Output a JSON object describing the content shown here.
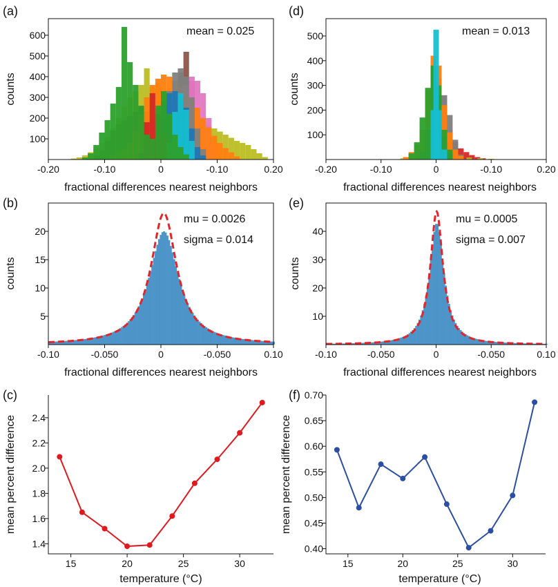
{
  "chart_data": [
    {
      "panel": "(a)",
      "type": "histogram",
      "annotation": "mean = 0.025",
      "xlabel": "fractional differences nearest neighbors",
      "ylabel": "counts",
      "x_ticks": [
        "-0.20",
        "-0.10",
        "0",
        "-0.10",
        "0.20"
      ],
      "y_ticks": [
        "100",
        "200",
        "300",
        "400",
        "500",
        "600"
      ],
      "xlim": [
        -0.2,
        0.2
      ],
      "ylim": [
        0,
        680
      ],
      "colors": [
        "#2ca02c",
        "#8c564b",
        "#bcbd22",
        "#ff7f0e",
        "#1f77b4",
        "#d62728",
        "#e377c2",
        "#7f7f7f",
        "#17becf"
      ],
      "series": [
        {
          "color": "#bcbd22",
          "values": [
            [
              -0.155,
              5
            ],
            [
              -0.145,
              10
            ],
            [
              -0.135,
              20
            ],
            [
              -0.125,
              35
            ],
            [
              -0.115,
              55
            ],
            [
              -0.105,
              80
            ],
            [
              -0.095,
              110
            ],
            [
              -0.085,
              150
            ],
            [
              -0.075,
              200
            ],
            [
              -0.065,
              255
            ],
            [
              -0.055,
              300
            ],
            [
              -0.045,
              330
            ],
            [
              -0.035,
              360
            ],
            [
              -0.025,
              440
            ],
            [
              -0.015,
              350
            ],
            [
              -0.005,
              370
            ],
            [
              0.005,
              330
            ],
            [
              0.015,
              290
            ],
            [
              0.025,
              260
            ],
            [
              0.035,
              270
            ],
            [
              0.045,
              240
            ],
            [
              0.055,
              215
            ],
            [
              0.065,
              195
            ],
            [
              0.075,
              180
            ],
            [
              0.085,
              165
            ],
            [
              0.095,
              150
            ],
            [
              0.105,
              135
            ],
            [
              0.115,
              120
            ],
            [
              0.125,
              105
            ],
            [
              0.135,
              90
            ],
            [
              0.145,
              80
            ],
            [
              0.155,
              70
            ],
            [
              0.165,
              50
            ],
            [
              0.175,
              30
            ],
            [
              0.185,
              12
            ]
          ]
        },
        {
          "color": "#8c564b",
          "values": [
            [
              -0.115,
              20
            ],
            [
              -0.105,
              45
            ],
            [
              -0.095,
              90
            ],
            [
              -0.085,
              140
            ],
            [
              -0.075,
              170
            ],
            [
              -0.065,
              190
            ],
            [
              -0.055,
              210
            ],
            [
              -0.045,
              230
            ],
            [
              -0.035,
              255
            ],
            [
              -0.025,
              230
            ],
            [
              -0.015,
              200
            ],
            [
              -0.005,
              210
            ],
            [
              0.005,
              220
            ],
            [
              0.015,
              210
            ],
            [
              0.025,
              300
            ],
            [
              0.035,
              420
            ],
            [
              0.045,
              520
            ],
            [
              0.055,
              380
            ],
            [
              0.065,
              210
            ],
            [
              0.075,
              90
            ],
            [
              0.085,
              30
            ]
          ]
        },
        {
          "color": "#e377c2",
          "values": [
            [
              0.015,
              60
            ],
            [
              0.025,
              180
            ],
            [
              0.035,
              290
            ],
            [
              0.045,
              360
            ],
            [
              0.055,
              400
            ],
            [
              0.065,
              380
            ],
            [
              0.075,
              320
            ],
            [
              0.085,
              200
            ],
            [
              0.095,
              80
            ]
          ]
        },
        {
          "color": "#ff7f0e",
          "values": [
            [
              -0.085,
              20
            ],
            [
              -0.075,
              35
            ],
            [
              -0.065,
              50
            ],
            [
              -0.055,
              80
            ],
            [
              -0.045,
              140
            ],
            [
              -0.035,
              220
            ],
            [
              -0.025,
              300
            ],
            [
              -0.015,
              360
            ],
            [
              -0.005,
              390
            ],
            [
              0.005,
              410
            ],
            [
              0.015,
              400
            ],
            [
              0.025,
              380
            ],
            [
              0.035,
              350
            ],
            [
              0.045,
              320
            ],
            [
              0.055,
              290
            ],
            [
              0.065,
              250
            ],
            [
              0.075,
              200
            ],
            [
              0.085,
              155
            ],
            [
              0.095,
              115
            ],
            [
              0.105,
              80
            ],
            [
              0.115,
              55
            ],
            [
              0.125,
              35
            ],
            [
              0.135,
              15
            ]
          ]
        },
        {
          "color": "#7f7f7f",
          "values": [
            [
              -0.005,
              50
            ],
            [
              0.005,
              200
            ],
            [
              0.015,
              330
            ],
            [
              0.025,
              420
            ],
            [
              0.035,
              440
            ],
            [
              0.045,
              400
            ],
            [
              0.055,
              300
            ],
            [
              0.065,
              150
            ],
            [
              0.075,
              50
            ]
          ]
        },
        {
          "color": "#1f77b4",
          "values": [
            [
              -0.025,
              30
            ],
            [
              -0.015,
              90
            ],
            [
              -0.005,
              190
            ],
            [
              0.005,
              280
            ],
            [
              0.015,
              320
            ],
            [
              0.025,
              330
            ],
            [
              0.035,
              300
            ],
            [
              0.045,
              250
            ],
            [
              0.055,
              150
            ],
            [
              0.065,
              60
            ],
            [
              0.075,
              20
            ]
          ]
        },
        {
          "color": "#d62728",
          "values": [
            [
              -0.035,
              30
            ],
            [
              -0.025,
              180
            ],
            [
              -0.015,
              320
            ],
            [
              -0.005,
              220
            ],
            [
              0.005,
              120
            ],
            [
              0.015,
              40
            ]
          ]
        },
        {
          "color": "#17becf",
          "values": [
            [
              0.015,
              80
            ],
            [
              0.025,
              230
            ],
            [
              0.035,
              320
            ],
            [
              0.045,
              240
            ],
            [
              0.055,
              90
            ]
          ]
        },
        {
          "color": "#2ca02c",
          "values": [
            [
              -0.135,
              10
            ],
            [
              -0.125,
              30
            ],
            [
              -0.115,
              70
            ],
            [
              -0.105,
              130
            ],
            [
              -0.095,
              190
            ],
            [
              -0.085,
              270
            ],
            [
              -0.075,
              350
            ],
            [
              -0.065,
              640
            ],
            [
              -0.055,
              470
            ],
            [
              -0.045,
              360
            ],
            [
              -0.035,
              260
            ],
            [
              -0.025,
              120
            ],
            [
              -0.015,
              100
            ],
            [
              -0.005,
              260
            ],
            [
              0.005,
              330
            ],
            [
              0.015,
              220
            ],
            [
              0.025,
              120
            ],
            [
              0.035,
              60
            ],
            [
              0.045,
              25
            ]
          ]
        }
      ]
    },
    {
      "panel": "(d)",
      "type": "histogram",
      "annotation": "mean = 0.013",
      "xlabel": "fractional differences nearest neighbors",
      "ylabel": "counts",
      "x_ticks": [
        "-0.20",
        "-0.10",
        "0",
        "-0.10",
        "0.20"
      ],
      "y_ticks": [
        "100",
        "200",
        "300",
        "400",
        "500"
      ],
      "xlim": [
        -0.2,
        0.2
      ],
      "ylim": [
        0,
        570
      ],
      "series": [
        {
          "color": "#d62728",
          "values": [
            [
              -0.035,
              10
            ],
            [
              -0.025,
              40
            ],
            [
              -0.015,
              90
            ],
            [
              -0.005,
              160
            ],
            [
              0.005,
              180
            ],
            [
              0.015,
              140
            ],
            [
              0.025,
              100
            ],
            [
              0.035,
              70
            ],
            [
              0.045,
              45
            ],
            [
              0.055,
              30
            ],
            [
              0.065,
              18
            ],
            [
              0.075,
              10
            ],
            [
              0.085,
              5
            ]
          ]
        },
        {
          "color": "#bcbd22",
          "values": [
            [
              -0.06,
              5
            ],
            [
              -0.04,
              15
            ],
            [
              -0.02,
              60
            ],
            [
              0.0,
              200
            ],
            [
              0.02,
              60
            ],
            [
              0.04,
              15
            ],
            [
              0.06,
              8
            ],
            [
              0.08,
              5
            ],
            [
              0.1,
              3
            ]
          ]
        },
        {
          "color": "#e377c2",
          "values": [
            [
              -0.005,
              60
            ],
            [
              0.005,
              200
            ],
            [
              0.015,
              260
            ],
            [
              0.025,
              120
            ],
            [
              0.035,
              30
            ]
          ]
        },
        {
          "color": "#7f7f7f",
          "values": [
            [
              -0.015,
              40
            ],
            [
              -0.005,
              250
            ],
            [
              0.005,
              330
            ],
            [
              0.015,
              260
            ],
            [
              0.025,
              180
            ],
            [
              0.035,
              80
            ],
            [
              0.045,
              20
            ]
          ]
        },
        {
          "color": "#ff7f0e",
          "values": [
            [
              -0.055,
              10
            ],
            [
              -0.045,
              30
            ],
            [
              -0.035,
              60
            ],
            [
              -0.025,
              120
            ],
            [
              -0.015,
              280
            ],
            [
              -0.005,
              420
            ],
            [
              0.005,
              380
            ],
            [
              0.015,
              220
            ],
            [
              0.025,
              110
            ],
            [
              0.035,
              40
            ],
            [
              0.045,
              15
            ]
          ]
        },
        {
          "color": "#1f77b4",
          "values": [
            [
              -0.025,
              30
            ],
            [
              -0.015,
              120
            ],
            [
              -0.005,
              380
            ],
            [
              0.005,
              260
            ],
            [
              0.015,
              90
            ],
            [
              0.025,
              25
            ]
          ]
        },
        {
          "color": "#2ca02c",
          "values": [
            [
              -0.045,
              25
            ],
            [
              -0.035,
              70
            ],
            [
              -0.025,
              170
            ],
            [
              -0.015,
              290
            ],
            [
              -0.005,
              380
            ],
            [
              0.005,
              300
            ],
            [
              0.015,
              120
            ],
            [
              0.025,
              40
            ]
          ]
        },
        {
          "color": "#17becf",
          "values": [
            [
              -0.005,
              200
            ],
            [
              0.0,
              525
            ],
            [
              0.005,
              200
            ],
            [
              0.015,
              40
            ]
          ]
        }
      ]
    },
    {
      "panel": "(b)",
      "type": "histogram",
      "annotation": [
        "mu = 0.0026",
        "sigma = 0.014"
      ],
      "xlabel": "fractional differences nearest neighbors",
      "ylabel": "counts",
      "x_ticks": [
        "-0.10",
        "-0.050",
        "0",
        "-0.050",
        "0.10"
      ],
      "y_ticks": [
        "5",
        "10",
        "15",
        "20"
      ],
      "xlim": [
        -0.1,
        0.1
      ],
      "ylim": [
        0,
        25
      ],
      "bar_color": "#4d94c8",
      "fit_color": "#e0262a",
      "fit": {
        "type": "dashed",
        "mu": 0.0026,
        "peak": 23.2,
        "halfwidth": 0.014
      },
      "hist": {
        "mu": 0.0026,
        "peak": 20.0,
        "halfwidth": 0.016
      }
    },
    {
      "panel": "(e)",
      "type": "histogram",
      "annotation": [
        "mu = 0.0005",
        "sigma = 0.007"
      ],
      "xlabel": "fractional differences nearest neighbors",
      "ylabel": "counts",
      "x_ticks": [
        "-0.10",
        "-0.050",
        "0",
        "-0.050",
        "0.10"
      ],
      "y_ticks": [
        "10",
        "20",
        "30",
        "40"
      ],
      "xlim": [
        -0.1,
        0.1
      ],
      "ylim": [
        0,
        50
      ],
      "bar_color": "#4d94c8",
      "fit_color": "#e0262a",
      "fit": {
        "type": "dashed",
        "mu": 0.0005,
        "peak": 47.0,
        "halfwidth": 0.007
      },
      "hist": {
        "mu": 0.0005,
        "peak": 43.0,
        "halfwidth": 0.008
      }
    },
    {
      "panel": "(c)",
      "type": "line",
      "xlabel": "temperature (°C)",
      "ylabel": "mean percent difference",
      "x_ticks": [
        "15",
        "20",
        "25",
        "30"
      ],
      "y_ticks": [
        "1.4",
        "1.6",
        "1.8",
        "2.0",
        "2.2",
        "2.4"
      ],
      "xlim": [
        13,
        33
      ],
      "ylim": [
        1.32,
        2.58
      ],
      "color": "#e0191e",
      "x": [
        14,
        16,
        18,
        20,
        22,
        24,
        26,
        28,
        30,
        32
      ],
      "y": [
        2.09,
        1.65,
        1.52,
        1.38,
        1.39,
        1.62,
        1.88,
        2.07,
        2.28,
        2.52
      ]
    },
    {
      "panel": "(f)",
      "type": "line",
      "xlabel": "temperature (°C)",
      "ylabel": "mean percent difference",
      "x_ticks": [
        "15",
        "20",
        "25",
        "30"
      ],
      "y_ticks": [
        "0.40",
        "0.45",
        "0.50",
        "0.55",
        "0.60",
        "0.65",
        "0.70"
      ],
      "xlim": [
        13,
        33
      ],
      "ylim": [
        0.39,
        0.7
      ],
      "color": "#2b4ea2",
      "x": [
        14,
        16,
        18,
        20,
        22,
        24,
        26,
        28,
        30,
        32
      ],
      "y": [
        0.593,
        0.48,
        0.565,
        0.537,
        0.579,
        0.487,
        0.402,
        0.435,
        0.504,
        0.686
      ]
    }
  ]
}
